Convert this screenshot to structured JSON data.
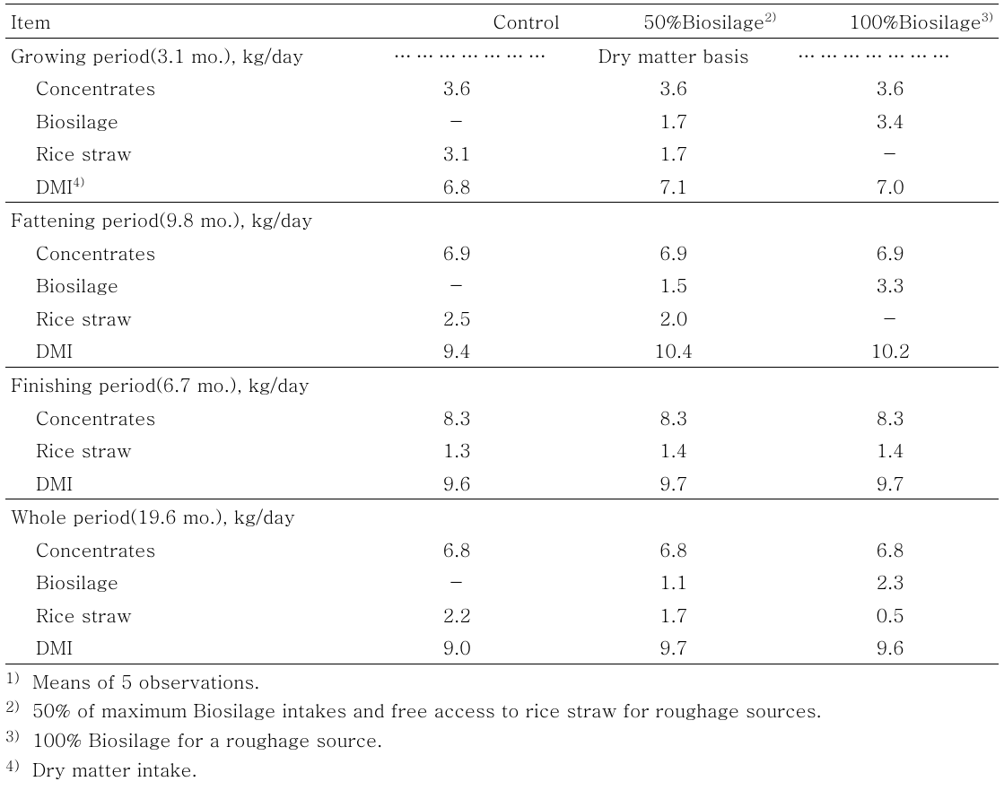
{
  "headers": {
    "item": "Item",
    "control": "Control",
    "bios50": "50%Biosilage",
    "bios50_sup": "2)",
    "bios100": "100%Biosilage",
    "bios100_sup": "3)"
  },
  "basis_label": "Dry matter basis",
  "sections": {
    "growing": {
      "label": "Growing period(3.1 mo.), kg/day",
      "rows": {
        "conc": {
          "label": "Concentrates",
          "control": "3.6",
          "b50": "3.6",
          "b100": "3.6"
        },
        "bios": {
          "label": "Biosilage",
          "control": "－",
          "b50": "1.7",
          "b100": "3.4"
        },
        "straw": {
          "label": "Rice straw",
          "control": "3.1",
          "b50": "1.7",
          "b100": "－"
        },
        "dmi": {
          "label": "DMI",
          "sup": "4)",
          "control": "6.8",
          "b50": "7.1",
          "b100": "7.0"
        }
      }
    },
    "fattening": {
      "label": "Fattening period(9.8 mo.), kg/day",
      "rows": {
        "conc": {
          "label": "Concentrates",
          "control": "6.9",
          "b50": "6.9",
          "b100": "6.9"
        },
        "bios": {
          "label": "Biosilage",
          "control": "－",
          "b50": "1.5",
          "b100": "3.3"
        },
        "straw": {
          "label": "Rice straw",
          "control": "2.5",
          "b50": "2.0",
          "b100": "－"
        },
        "dmi": {
          "label": "DMI",
          "control": "9.4",
          "b50": "10.4",
          "b100": "10.2"
        }
      }
    },
    "finishing": {
      "label": "Finishing period(6.7 mo.), kg/day",
      "rows": {
        "conc": {
          "label": "Concentrates",
          "control": "8.3",
          "b50": "8.3",
          "b100": "8.3"
        },
        "straw": {
          "label": "Rice straw",
          "control": "1.3",
          "b50": "1.4",
          "b100": "1.4"
        },
        "dmi": {
          "label": "DMI",
          "control": "9.6",
          "b50": "9.7",
          "b100": "9.7"
        }
      }
    },
    "whole": {
      "label": "Whole period(19.6 mo.), kg/day",
      "rows": {
        "conc": {
          "label": "Concentrates",
          "control": "6.8",
          "b50": "6.8",
          "b100": "6.8"
        },
        "bios": {
          "label": "Biosilage",
          "control": "－",
          "b50": "1.1",
          "b100": "2.3"
        },
        "straw": {
          "label": "Rice straw",
          "control": "2.2",
          "b50": "1.7",
          "b100": "0.5"
        },
        "dmi": {
          "label": "DMI",
          "control": "9.0",
          "b50": "9.7",
          "b100": "9.6"
        }
      }
    }
  },
  "footnotes": {
    "f1": {
      "mark": "1)",
      "text": "Means of 5 observations."
    },
    "f2": {
      "mark": "2)",
      "text": "50% of maximum Biosilage intakes and free access to rice straw for roughage sources."
    },
    "f3": {
      "mark": "3)",
      "text": "100% Biosilage for a roughage source."
    },
    "f4": {
      "mark": "4)",
      "text": "Dry matter intake."
    }
  }
}
